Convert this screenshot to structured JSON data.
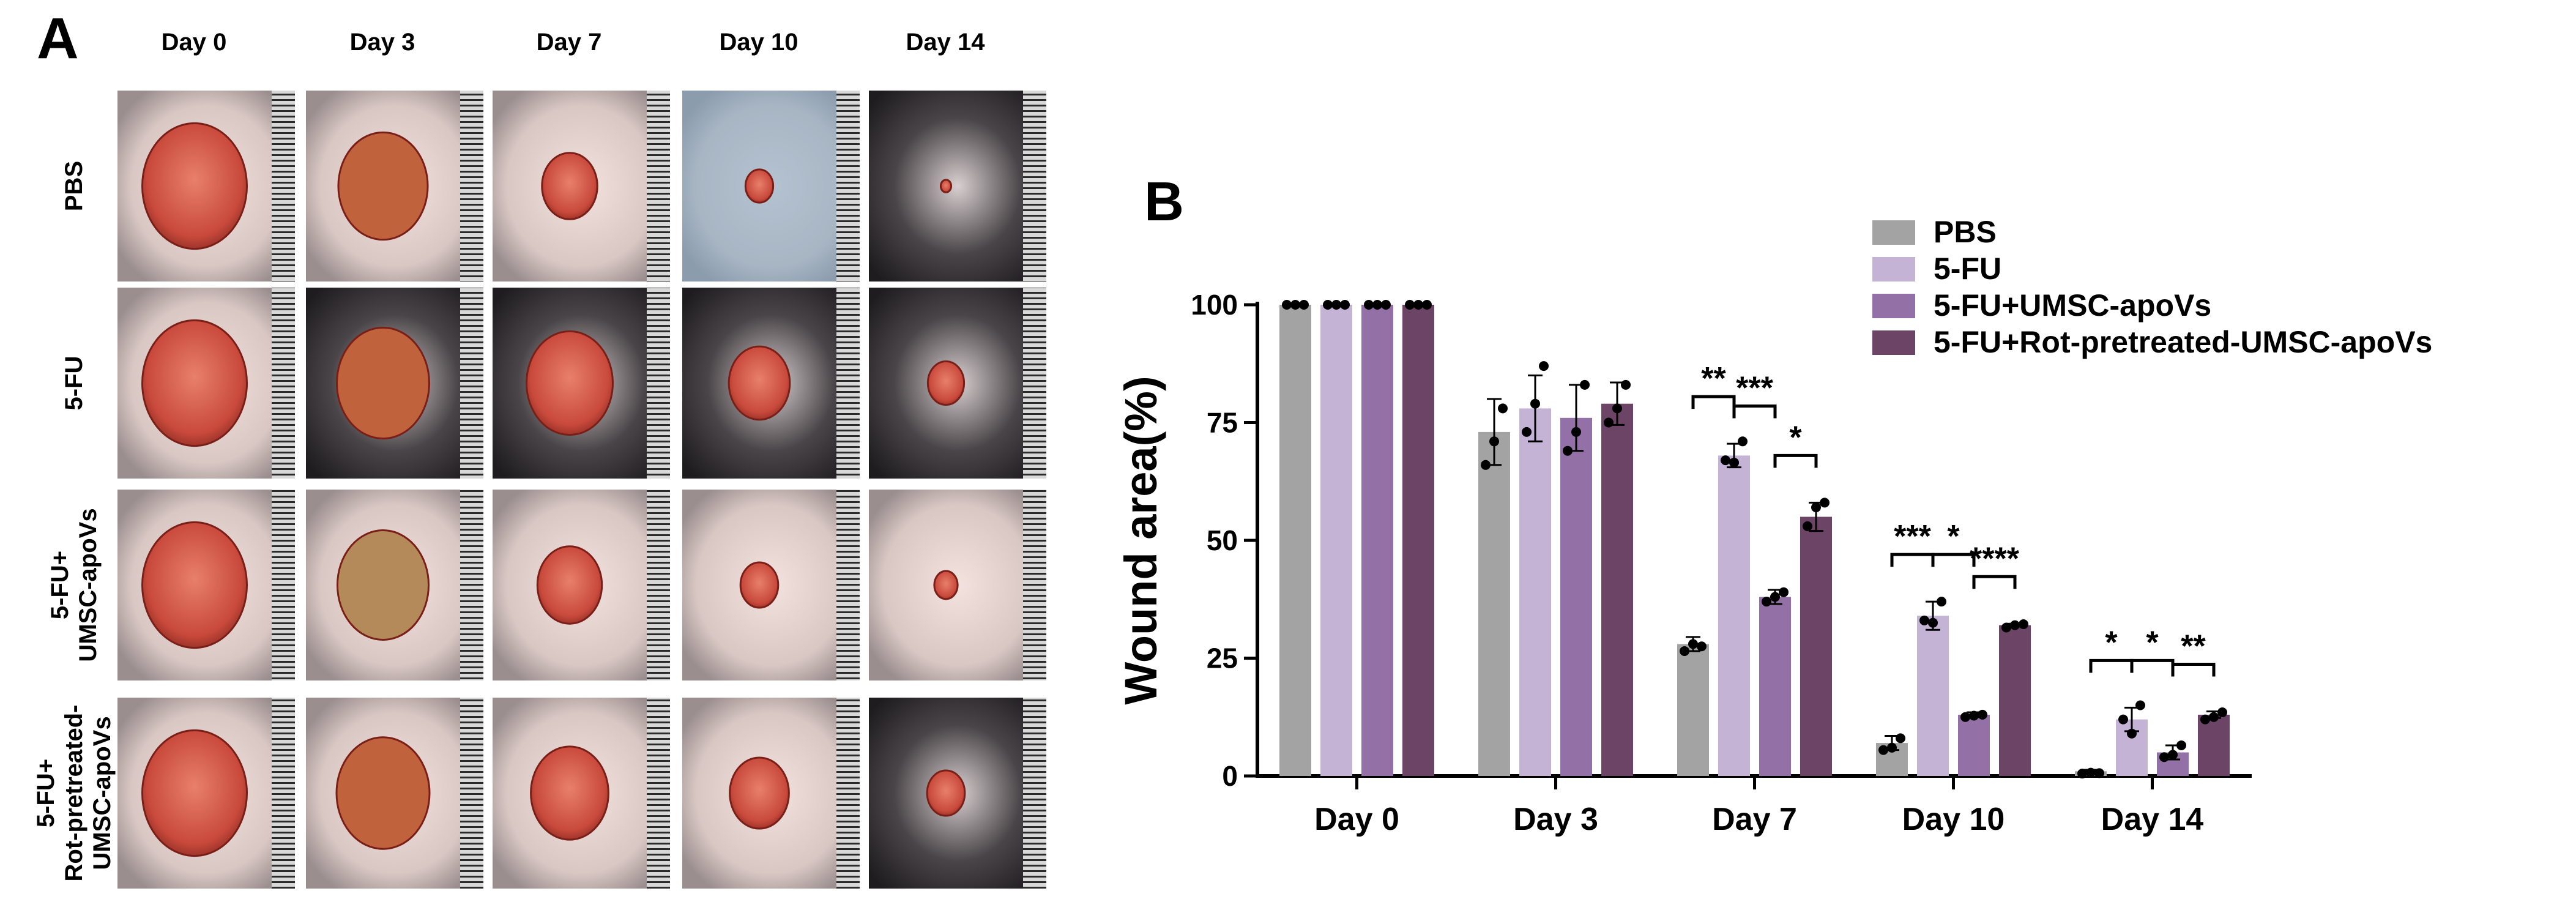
{
  "panel_a": {
    "letter": "A",
    "days": [
      "Day 0",
      "Day 3",
      "Day 7",
      "Day 10",
      "Day 14"
    ],
    "groups": [
      "PBS",
      "5-FU",
      "5-FU+\nUMSC-apoVs",
      "5-FU+\nRot-pretreated-\nUMSC-apoVs"
    ],
    "photo_wound_area_percent": [
      [
        100,
        73,
        28,
        7,
        1
      ],
      [
        100,
        78,
        68,
        34,
        12
      ],
      [
        100,
        76,
        38,
        13,
        5
      ],
      [
        100,
        79,
        55,
        32,
        13
      ]
    ]
  },
  "panel_b": {
    "letter": "B"
  },
  "chart_data": {
    "type": "bar",
    "title": "",
    "xlabel": "",
    "ylabel": "Wound area(%)",
    "ylim": [
      0,
      100
    ],
    "yticks": [
      0,
      25,
      50,
      75,
      100
    ],
    "categories": [
      "Day 0",
      "Day 3",
      "Day 7",
      "Day 10",
      "Day 14"
    ],
    "legend_position": "top-right",
    "series": [
      {
        "name": "PBS",
        "color": "#a3a3a3",
        "values": [
          100,
          73,
          28,
          7,
          1
        ],
        "errors": [
          0,
          7,
          1.5,
          1.5,
          0.3
        ]
      },
      {
        "name": "5-FU",
        "color": "#c5b3d6",
        "values": [
          100,
          78,
          68,
          34,
          12
        ],
        "errors": [
          0,
          7,
          2.5,
          3,
          2.5
        ]
      },
      {
        "name": "5-FU+UMSC-apoVs",
        "color": "#9370a6",
        "values": [
          100,
          76,
          38,
          13,
          5
        ],
        "errors": [
          0,
          7,
          1.5,
          0.5,
          1.5
        ]
      },
      {
        "name": "5-FU+Rot-pretreated-UMSC-apoVs",
        "color": "#6b4466",
        "values": [
          100,
          79,
          55,
          32,
          13
        ],
        "errors": [
          0,
          4.5,
          3,
          0.3,
          0.7
        ]
      }
    ],
    "points": [
      [
        [
          100,
          100,
          100
        ],
        [
          66,
          71,
          78
        ],
        [
          26.5,
          28,
          27.5
        ],
        [
          5.5,
          6,
          8
        ],
        [
          0.5,
          0.7,
          0.6
        ]
      ],
      [
        [
          100,
          100,
          100
        ],
        [
          73,
          79,
          87
        ],
        [
          67,
          66.5,
          71
        ],
        [
          33,
          32.5,
          37
        ],
        [
          12,
          9,
          15
        ]
      ],
      [
        [
          100,
          100,
          100
        ],
        [
          69,
          73,
          83
        ],
        [
          37,
          38,
          39
        ],
        [
          12.5,
          12.8,
          13
        ],
        [
          4,
          4.5,
          6.5
        ]
      ],
      [
        [
          100,
          100,
          100
        ],
        [
          75,
          78,
          83
        ],
        [
          53,
          57,
          58
        ],
        [
          31.5,
          32,
          32.2
        ],
        [
          12,
          12.5,
          13.5
        ]
      ]
    ],
    "significance": [
      {
        "day": 2,
        "from": 0,
        "to": 1,
        "label": "**"
      },
      {
        "day": 2,
        "from": 1,
        "to": 2,
        "label": "***"
      },
      {
        "day": 2,
        "from": 2,
        "to": 3,
        "label": "*"
      },
      {
        "day": 3,
        "from": 0,
        "to": 1,
        "label": "***"
      },
      {
        "day": 3,
        "from": 1,
        "to": 2,
        "label": "*"
      },
      {
        "day": 3,
        "from": 2,
        "to": 3,
        "label": "****"
      },
      {
        "day": 4,
        "from": 0,
        "to": 1,
        "label": "*"
      },
      {
        "day": 4,
        "from": 1,
        "to": 2,
        "label": "*"
      },
      {
        "day": 4,
        "from": 2,
        "to": 3,
        "label": "**"
      }
    ]
  }
}
